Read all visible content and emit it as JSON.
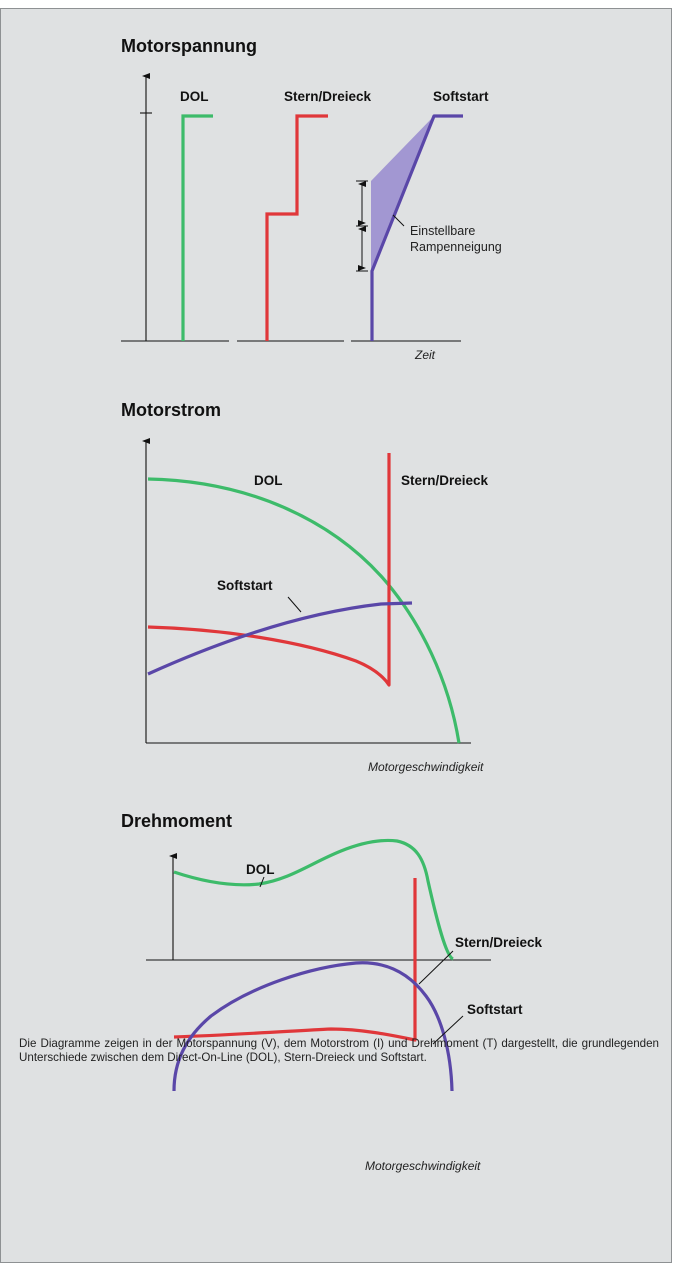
{
  "panels": {
    "voltage": {
      "title": "Motorspannung",
      "labels": {
        "dol": "DOL",
        "star_delta": "Stern/Dreieck",
        "softstart": "Softstart"
      },
      "ramp_note_line1": "Einstellbare",
      "ramp_note_line2": "Rampenneigung",
      "x_axis_label": "Zeit"
    },
    "current": {
      "title": "Motorstrom",
      "labels": {
        "dol": "DOL",
        "star_delta": "Stern/Dreieck",
        "softstart": "Softstart"
      },
      "x_axis_label": "Motorgeschwindigkeit"
    },
    "torque": {
      "title": "Drehmoment",
      "labels": {
        "dol": "DOL",
        "star_delta": "Stern/Dreieck",
        "softstart": "Softstart"
      },
      "x_axis_label": "Motorgeschwindigkeit"
    }
  },
  "caption": "Die Diagramme zeigen in der Motorspannung (V), dem Motorstrom (I) und Drehmoment (T) dargestellt, die grundlegenden Unterschiede zwischen dem Direct-On-Line (DOL), Stern-Dreieck und Softstart.",
  "colors": {
    "dol": "#3dbb6a",
    "star_delta": "#e0373a",
    "softstart": "#5a47a8",
    "ramp_fill": "#9b8fd0",
    "background": "#dfe1e2"
  }
}
